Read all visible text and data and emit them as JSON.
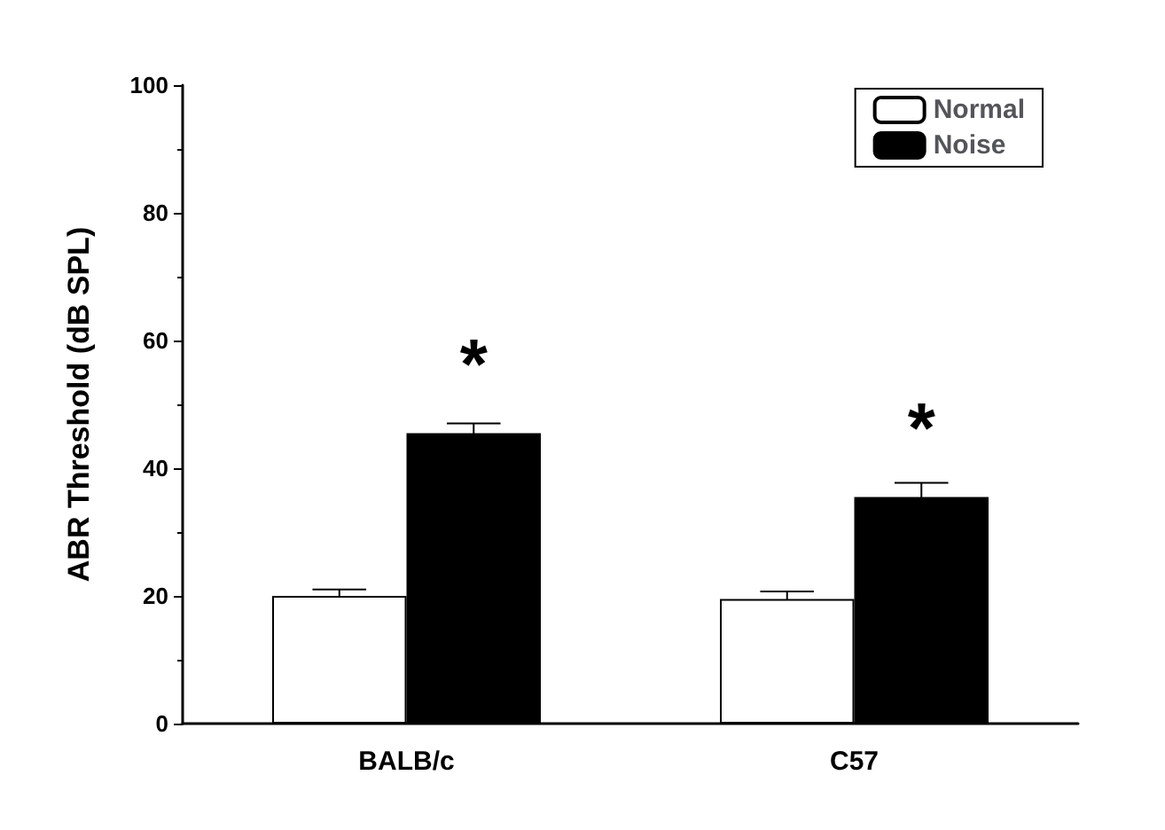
{
  "chart_data": {
    "type": "bar",
    "ylabel": "ABR Threshold (dB SPL)",
    "categories": [
      "BALB/c",
      "C57"
    ],
    "series": [
      {
        "name": "Normal",
        "color": "#ffffff",
        "values": [
          20,
          19.5
        ],
        "errors": [
          1,
          1.2
        ]
      },
      {
        "name": "Noise",
        "color": "#000000",
        "values": [
          45.5,
          35.5
        ],
        "errors": [
          1.5,
          2.2
        ]
      }
    ],
    "ylim": [
      0,
      100
    ],
    "yticks": [
      0,
      20,
      40,
      60,
      80,
      100
    ],
    "grid": false,
    "legend": "top right",
    "annotations": [
      {
        "text": "*",
        "x": "BALB/c",
        "y": 45.5
      },
      {
        "text": "*",
        "x": "C57",
        "y": 35.5
      }
    ]
  }
}
